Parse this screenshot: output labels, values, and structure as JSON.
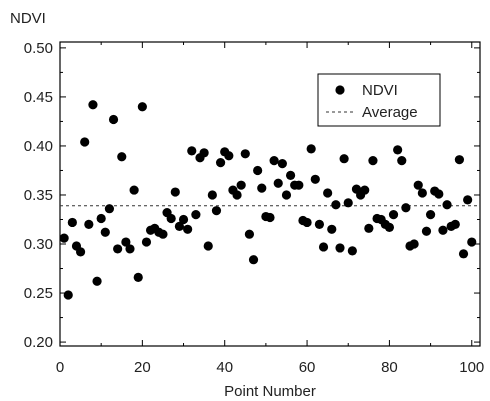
{
  "chart_data": {
    "type": "scatter",
    "title": "",
    "xlabel": "Point Number",
    "ylabel": "NDVI",
    "xlim": [
      0,
      102
    ],
    "ylim": [
      0.196,
      0.506
    ],
    "x_ticks": [
      0,
      20,
      40,
      60,
      80,
      100
    ],
    "y_ticks": [
      0.2,
      0.25,
      0.3,
      0.35,
      0.4,
      0.45,
      0.5
    ],
    "x_tick_labels": [
      "0",
      "20",
      "40",
      "60",
      "80",
      "100"
    ],
    "y_tick_labels": [
      "0.20",
      "0.25",
      "0.30",
      "0.35",
      "0.40",
      "0.45",
      "0.50"
    ],
    "legend_position": "top-right",
    "grid": false,
    "series": [
      {
        "name": "NDVI",
        "marker": "filled-circle",
        "color": "#000000",
        "x": [
          1,
          2,
          3,
          4,
          5,
          6,
          7,
          8,
          9,
          10,
          11,
          12,
          13,
          14,
          15,
          16,
          17,
          18,
          19,
          20,
          21,
          22,
          23,
          24,
          25,
          26,
          27,
          28,
          29,
          30,
          31,
          32,
          33,
          34,
          35,
          36,
          37,
          38,
          39,
          40,
          41,
          42,
          43,
          44,
          45,
          46,
          47,
          48,
          49,
          50,
          51,
          52,
          53,
          54,
          55,
          56,
          57,
          58,
          59,
          60,
          61,
          62,
          63,
          64,
          65,
          66,
          67,
          68,
          69,
          70,
          71,
          72,
          73,
          74,
          75,
          76,
          77,
          78,
          79,
          80,
          81,
          82,
          83,
          84,
          85,
          86,
          87,
          88,
          89,
          90,
          91,
          92,
          93,
          94,
          95,
          96,
          97,
          98,
          99,
          100
        ],
        "y": [
          0.306,
          0.248,
          0.322,
          0.298,
          0.292,
          0.404,
          0.32,
          0.442,
          0.262,
          0.326,
          0.312,
          0.336,
          0.427,
          0.295,
          0.389,
          0.302,
          0.295,
          0.355,
          0.266,
          0.44,
          0.302,
          0.314,
          0.316,
          0.312,
          0.31,
          0.332,
          0.326,
          0.353,
          0.318,
          0.325,
          0.315,
          0.395,
          0.33,
          0.388,
          0.393,
          0.298,
          0.35,
          0.334,
          0.383,
          0.394,
          0.39,
          0.355,
          0.35,
          0.36,
          0.392,
          0.31,
          0.284,
          0.375,
          0.357,
          0.328,
          0.327,
          0.385,
          0.362,
          0.382,
          0.35,
          0.37,
          0.36,
          0.36,
          0.324,
          0.322,
          0.397,
          0.366,
          0.32,
          0.297,
          0.352,
          0.315,
          0.34,
          0.296,
          0.387,
          0.342,
          0.293,
          0.356,
          0.35,
          0.355,
          0.316,
          0.385,
          0.326,
          0.325,
          0.32,
          0.317,
          0.33,
          0.396,
          0.385,
          0.337,
          0.298,
          0.3,
          0.36,
          0.352,
          0.313,
          0.33,
          0.354,
          0.351,
          0.314,
          0.34,
          0.318,
          0.32,
          0.386,
          0.29,
          0.345,
          0.302
        ]
      },
      {
        "name": "Average",
        "style": "dashed",
        "color": "#333333",
        "y": 0.339
      }
    ]
  }
}
